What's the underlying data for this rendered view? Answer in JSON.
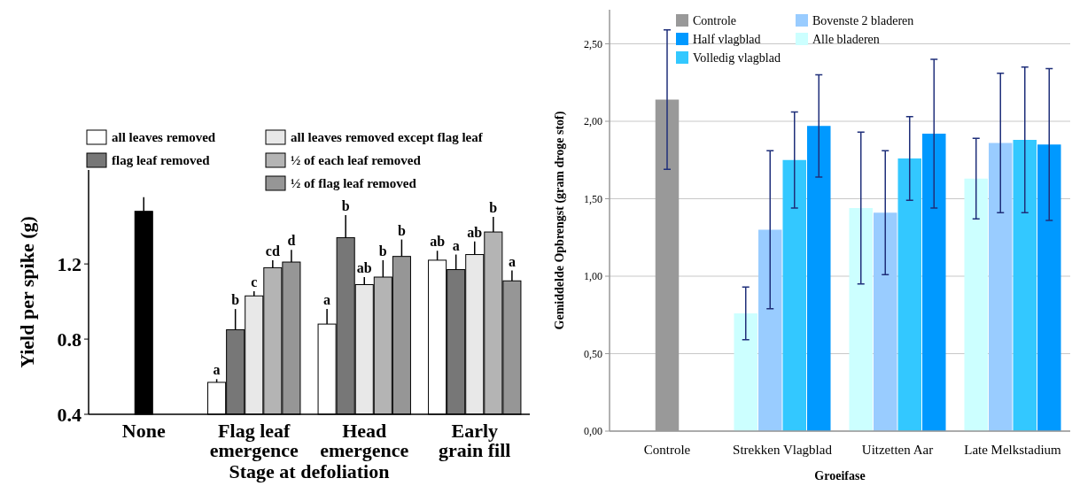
{
  "chart_data": [
    {
      "type": "bar",
      "xlabel": "Stage at defoliation",
      "ylabel": "Yield per spike (g)",
      "categories": [
        "None",
        "Flag leaf emergence",
        "Head emergence",
        "Early grain fill"
      ],
      "ylim": [
        0.4,
        1.7
      ],
      "yticks": [
        0.4,
        0.8,
        1.2
      ],
      "legend": "top",
      "series": [
        {
          "color": "#000000",
          "values": [
            1.48,
            null,
            null,
            null
          ],
          "errors": [
            [
              1.48,
              1.555
            ],
            null,
            null,
            null
          ]
        },
        {
          "name": "all leaves removed",
          "color": "#ffffff",
          "values": [
            null,
            0.57,
            0.88,
            1.22
          ],
          "errors": [
            null,
            [
              0.57,
              0.587
            ],
            [
              0.88,
              0.96
            ],
            [
              1.22,
              1.27
            ]
          ],
          "value_labels": [
            null,
            "a",
            "a",
            "ab"
          ]
        },
        {
          "name": "flag leaf removed",
          "color": "#777777",
          "values": [
            null,
            0.85,
            1.34,
            1.17
          ],
          "errors": [
            null,
            [
              0.85,
              0.96
            ],
            [
              1.34,
              1.46
            ],
            [
              1.17,
              1.25
            ]
          ],
          "value_labels": [
            null,
            "b",
            "b",
            "a"
          ]
        },
        {
          "name": "all leaves removed except flag leaf",
          "color": "#e8e8e8",
          "values": [
            null,
            1.03,
            1.09,
            1.25
          ],
          "errors": [
            null,
            [
              1.03,
              1.055
            ],
            [
              1.09,
              1.13
            ],
            [
              1.25,
              1.32
            ]
          ],
          "value_labels": [
            null,
            "c",
            "ab",
            "ab"
          ]
        },
        {
          "name": "½ of each leaf removed",
          "color": "#b4b4b4",
          "values": [
            null,
            1.18,
            1.13,
            1.37
          ],
          "errors": [
            null,
            [
              1.18,
              1.22
            ],
            [
              1.13,
              1.22
            ],
            [
              1.37,
              1.45
            ]
          ],
          "value_labels": [
            null,
            "cd",
            "b",
            "b"
          ]
        },
        {
          "name": "½ of flag leaf removed",
          "color": "#969696",
          "values": [
            null,
            1.21,
            1.24,
            1.11
          ],
          "errors": [
            null,
            [
              1.21,
              1.275
            ],
            [
              1.24,
              1.33
            ],
            [
              1.11,
              1.165
            ]
          ],
          "value_labels": [
            null,
            "d",
            "b",
            "a"
          ]
        }
      ]
    },
    {
      "type": "bar",
      "xlabel": "Groeifase",
      "ylabel": "Gemiddelde Opbrengst (gram droge stof)",
      "categories": [
        "Controle",
        "Strekken Vlagblad",
        "Uitzetten Aar",
        "Late Melkstadium"
      ],
      "ylim": [
        0,
        2.72
      ],
      "yticks": [
        {
          "value": 0,
          "label": "0,00"
        },
        {
          "value": 0.5,
          "label": "0,50"
        },
        {
          "value": 1,
          "label": "1,00"
        },
        {
          "value": 1.5,
          "label": "1,50"
        },
        {
          "value": 2,
          "label": "2,00"
        },
        {
          "value": 2.5,
          "label": "2,50"
        }
      ],
      "grid": "y",
      "legend": "top left",
      "series": [
        {
          "name": "Controle",
          "color": "#999999",
          "values": [
            2.14,
            null,
            null,
            null
          ],
          "errors": [
            0.45,
            null,
            null,
            null
          ]
        },
        {
          "name": "Alle bladeren",
          "color": "#ccffff",
          "values": [
            null,
            0.76,
            1.44,
            1.63
          ],
          "errors": [
            null,
            0.17,
            0.49,
            0.26
          ]
        },
        {
          "name": "Bovenste 2 bladeren",
          "color": "#99ccff",
          "values": [
            null,
            1.3,
            1.41,
            1.86
          ],
          "errors": [
            null,
            0.51,
            0.4,
            0.45
          ]
        },
        {
          "name": "Volledig vlagblad",
          "color": "#33c8ff",
          "values": [
            null,
            1.75,
            1.76,
            1.88
          ],
          "errors": [
            null,
            0.31,
            0.27,
            0.47
          ]
        },
        {
          "name": "Half vlagblad",
          "color": "#0099ff",
          "values": [
            null,
            1.97,
            1.92,
            1.85
          ],
          "errors": [
            null,
            0.33,
            0.48,
            0.49
          ]
        }
      ]
    }
  ]
}
